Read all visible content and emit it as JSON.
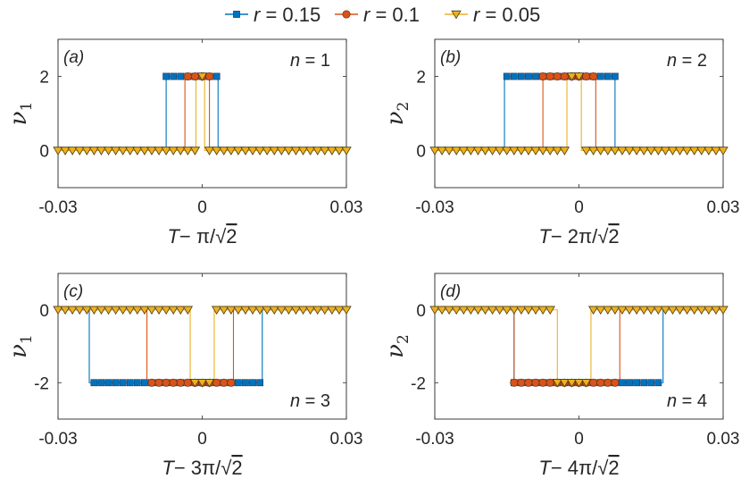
{
  "legend": [
    {
      "sym": "r",
      "rest": " = 0.15"
    },
    {
      "sym": "r",
      "rest": " = 0.1"
    },
    {
      "sym": "r",
      "rest": " = 0.05"
    }
  ],
  "series_styles": [
    {
      "color": "#0072BD",
      "marker": "square"
    },
    {
      "color": "#D95319",
      "marker": "circle"
    },
    {
      "color": "#EDB120",
      "marker": "triangle-down"
    }
  ],
  "chart_data": [
    {
      "type": "line",
      "panel": "(a)",
      "n_sym": "n",
      "n_rest": " = 1",
      "ylabel_main": "ν",
      "ylabel_sub": "1",
      "xlabel_T": "T",
      "xlabel_rest": "− π/",
      "xlabel_rad": "2",
      "xlim": [
        -0.03,
        0.03
      ],
      "ylim": [
        -1,
        3
      ],
      "xticks": [
        "-0.03",
        "0",
        "0.03"
      ],
      "xtick_values": [
        -0.03,
        0,
        0.03
      ],
      "yticks": [
        "0",
        "2"
      ],
      "ytick_values": [
        0,
        2
      ],
      "level": 2,
      "series": [
        {
          "name": "r = 0.15",
          "interval": [
            -0.0075,
            0.0033
          ]
        },
        {
          "name": "r = 0.1",
          "interval": [
            -0.0036,
            0.0015
          ]
        },
        {
          "name": "r = 0.05",
          "interval": [
            -0.0013,
            0.0005
          ]
        }
      ]
    },
    {
      "type": "line",
      "panel": "(b)",
      "n_sym": "n",
      "n_rest": " = 2",
      "ylabel_main": "ν",
      "ylabel_sub": "2",
      "xlabel_T": "T",
      "xlabel_rest": "− 2π/",
      "xlabel_rad": "2",
      "xlim": [
        -0.03,
        0.03
      ],
      "ylim": [
        -1,
        3
      ],
      "xticks": [
        "-0.03",
        "0",
        "0.03"
      ],
      "xtick_values": [
        -0.03,
        0,
        0.03
      ],
      "yticks": [
        "0",
        "2"
      ],
      "ytick_values": [
        0,
        2
      ],
      "level": 2,
      "series": [
        {
          "name": "r = 0.15",
          "interval": [
            -0.0155,
            0.0075
          ]
        },
        {
          "name": "r = 0.1",
          "interval": [
            -0.0075,
            0.0035
          ]
        },
        {
          "name": "r = 0.05",
          "interval": [
            -0.0025,
            0.0005
          ]
        }
      ]
    },
    {
      "type": "line",
      "panel": "(c)",
      "n_sym": "n",
      "n_rest": " = 3",
      "ylabel_main": "ν",
      "ylabel_sub": "1",
      "xlabel_T": "T",
      "xlabel_rest": "− 3π/",
      "xlabel_rad": "2",
      "xlim": [
        -0.03,
        0.03
      ],
      "ylim": [
        -3,
        1
      ],
      "xticks": [
        "-0.03",
        "0",
        "0.03"
      ],
      "xtick_values": [
        -0.03,
        0,
        0.03
      ],
      "yticks": [
        "-2",
        "0"
      ],
      "ytick_values": [
        -2,
        0
      ],
      "level": -2,
      "series": [
        {
          "name": "r = 0.15",
          "interval": [
            -0.0235,
            0.0125
          ]
        },
        {
          "name": "r = 0.1",
          "interval": [
            -0.0115,
            0.0065
          ]
        },
        {
          "name": "r = 0.05",
          "interval": [
            -0.0025,
            0.0025
          ]
        }
      ]
    },
    {
      "type": "line",
      "panel": "(d)",
      "n_sym": "n",
      "n_rest": " = 4",
      "ylabel_main": "ν",
      "ylabel_sub": "2",
      "xlabel_T": "T",
      "xlabel_rest": "− 4π/",
      "xlabel_rad": "2",
      "xlim": [
        -0.03,
        0.03
      ],
      "ylim": [
        -3,
        1
      ],
      "xticks": [
        "-0.03",
        "0",
        "0.03"
      ],
      "xtick_values": [
        -0.03,
        0,
        0.03
      ],
      "yticks": [
        "-2",
        "0"
      ],
      "ytick_values": [
        -2,
        0
      ],
      "level": -2,
      "series": [
        {
          "name": "r = 0.15",
          "interval": [
            -0.0135,
            0.0175
          ]
        },
        {
          "name": "r = 0.1",
          "interval": [
            -0.0135,
            0.0085
          ]
        },
        {
          "name": "r = 0.05",
          "interval": [
            -0.0045,
            0.0025
          ]
        }
      ]
    }
  ]
}
